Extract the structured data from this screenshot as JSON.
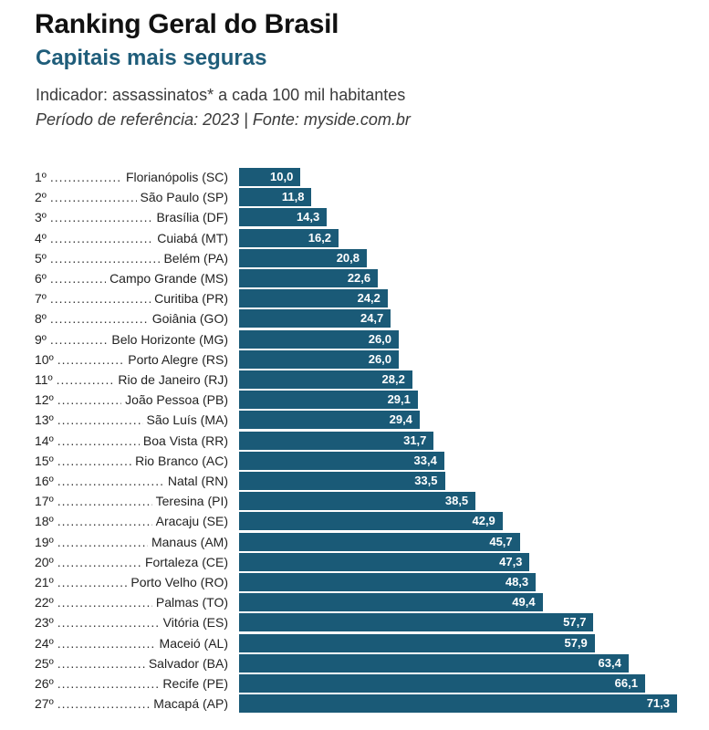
{
  "header": {
    "title": "Ranking Geral do Brasil",
    "subtitle": "Capitais mais seguras",
    "indicator": "Indicador: assassinatos* a cada 100 mil habitantes",
    "period": "Período de referência: 2023 | Fonte: myside.com.br"
  },
  "colors": {
    "bar": "#1a5a77",
    "subtitle": "#1f5d7a",
    "text": "#222222"
  },
  "chart_data": {
    "type": "bar",
    "orientation": "horizontal",
    "title": "Ranking Geral do Brasil",
    "subtitle": "Capitais mais seguras",
    "xlim": [
      0,
      71.3
    ],
    "categories": [
      {
        "rank": "1º",
        "city": "Florianópolis (SC)",
        "value": 10.0,
        "label": "10,0"
      },
      {
        "rank": "2º",
        "city": "São Paulo (SP)",
        "value": 11.8,
        "label": "11,8"
      },
      {
        "rank": "3º",
        "city": "Brasília (DF)",
        "value": 14.3,
        "label": "14,3"
      },
      {
        "rank": "4º",
        "city": "Cuiabá (MT)",
        "value": 16.2,
        "label": "16,2"
      },
      {
        "rank": "5º",
        "city": "Belém (PA)",
        "value": 20.8,
        "label": "20,8"
      },
      {
        "rank": "6º",
        "city": "Campo Grande (MS)",
        "value": 22.6,
        "label": "22,6"
      },
      {
        "rank": "7º",
        "city": "Curitiba (PR)",
        "value": 24.2,
        "label": "24,2"
      },
      {
        "rank": "8º",
        "city": "Goiânia (GO)",
        "value": 24.7,
        "label": "24,7"
      },
      {
        "rank": "9º",
        "city": "Belo Horizonte (MG)",
        "value": 26.0,
        "label": "26,0"
      },
      {
        "rank": "10º",
        "city": "Porto Alegre (RS)",
        "value": 26.0,
        "label": "26,0"
      },
      {
        "rank": "11º",
        "city": "Rio de Janeiro (RJ)",
        "value": 28.2,
        "label": "28,2"
      },
      {
        "rank": "12º",
        "city": "João Pessoa (PB)",
        "value": 29.1,
        "label": "29,1"
      },
      {
        "rank": "13º",
        "city": "São Luís (MA)",
        "value": 29.4,
        "label": "29,4"
      },
      {
        "rank": "14º",
        "city": "Boa Vista (RR)",
        "value": 31.7,
        "label": "31,7"
      },
      {
        "rank": "15º",
        "city": "Rio Branco (AC)",
        "value": 33.4,
        "label": "33,4"
      },
      {
        "rank": "16º",
        "city": "Natal (RN)",
        "value": 33.5,
        "label": "33,5"
      },
      {
        "rank": "17º",
        "city": "Teresina (PI)",
        "value": 38.5,
        "label": "38,5"
      },
      {
        "rank": "18º",
        "city": "Aracaju (SE)",
        "value": 42.9,
        "label": "42,9"
      },
      {
        "rank": "19º",
        "city": "Manaus (AM)",
        "value": 45.7,
        "label": "45,7"
      },
      {
        "rank": "20º",
        "city": "Fortaleza (CE)",
        "value": 47.3,
        "label": "47,3"
      },
      {
        "rank": "21º",
        "city": "Porto Velho (RO)",
        "value": 48.3,
        "label": "48,3"
      },
      {
        "rank": "22º",
        "city": "Palmas (TO)",
        "value": 49.4,
        "label": "49,4"
      },
      {
        "rank": "23º",
        "city": "Vitória (ES)",
        "value": 57.7,
        "label": "57,7"
      },
      {
        "rank": "24º",
        "city": "Maceió (AL)",
        "value": 57.9,
        "label": "57,9"
      },
      {
        "rank": "25º",
        "city": "Salvador (BA)",
        "value": 63.4,
        "label": "63,4"
      },
      {
        "rank": "26º",
        "city": "Recife (PE)",
        "value": 66.1,
        "label": "66,1"
      },
      {
        "rank": "27º",
        "city": "Macapá (AP)",
        "value": 71.3,
        "label": "71,3"
      }
    ]
  }
}
